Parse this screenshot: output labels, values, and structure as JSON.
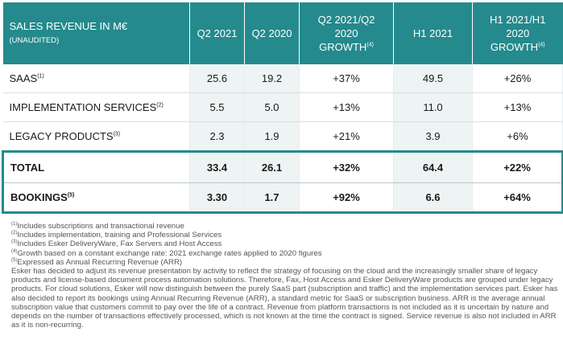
{
  "table": {
    "header": {
      "title": "SALES REVENUE IN M€",
      "subtitle": "(UNAUDITED)",
      "col_q2_2021": "Q2 2021",
      "col_q2_2020": "Q2 2020",
      "col_q2_growth_l1": "Q2 2021/Q2",
      "col_q2_growth_l2": "2020",
      "col_q2_growth_l3": "GROWTH",
      "col_q2_growth_note": "(4)",
      "col_h1_2021": "H1 2021",
      "col_h1_growth_l1": "H1 2021/H1",
      "col_h1_growth_l2": "2020",
      "col_h1_growth_l3": "GROWTH",
      "col_h1_growth_note": "(4)"
    },
    "rows": [
      {
        "label": "SAAS",
        "note": "(1)",
        "q2_2021": "25.6",
        "q2_2020": "19.2",
        "q2_growth": "+37%",
        "h1_2021": "49.5",
        "h1_growth": "+26%"
      },
      {
        "label": "IMPLEMENTATION SERVICES",
        "note": "(2)",
        "q2_2021": "5.5",
        "q2_2020": "5.0",
        "q2_growth": "+13%",
        "h1_2021": "11.0",
        "h1_growth": "+13%"
      },
      {
        "label": "LEGACY PRODUCTS",
        "note": "(3)",
        "q2_2021": "2.3",
        "q2_2020": "1.9",
        "q2_growth": "+21%",
        "h1_2021": "3.9",
        "h1_growth": "+6%"
      },
      {
        "label": "TOTAL",
        "note": "",
        "q2_2021": "33.4",
        "q2_2020": "26.1",
        "q2_growth": "+32%",
        "h1_2021": "64.4",
        "h1_growth": "+22%"
      },
      {
        "label": "BOOKINGS",
        "note": "(5)",
        "q2_2021": "3.30",
        "q2_2020": "1.7",
        "q2_growth": "+92%",
        "h1_2021": "6.6",
        "h1_growth": "+64%"
      }
    ]
  },
  "footnotes": [
    {
      "mark": "(1)",
      "text": "Includes subscriptions and transactional revenue"
    },
    {
      "mark": "(2)",
      "text": "Includes implementation, training and Professional Services"
    },
    {
      "mark": "(3)",
      "text": "Includes Esker DeliveryWare, Fax Servers and Host Access"
    },
    {
      "mark": "(4)",
      "text": "Growth based on a constant exchange rate: 2021 exchange rates applied to 2020 figures"
    },
    {
      "mark": "(5)",
      "text": "Expressed as Annual Recurring Revenue (ARR)"
    }
  ],
  "explanation": "Esker has decided to adjust its revenue presentation by activity to reflect the strategy of focusing on the cloud and the increasingly smaller share of legacy products and license-based document process automation solutions. Therefore, Fax, Host Access and Esker DeliveryWare products are grouped under legacy products. For cloud solutions, Esker will now distinguish between the purely SaaS part (subscription and traffic) and the implementation services part. Esker has also decided to report its bookings using Annual Recurring Revenue (ARR), a standard metric for SaaS or subscription business. ARR is the average annual subscription value that customers commit to pay over the life of a contract. Revenue from platform transactions is not included as it is uncertain by nature and depends on the number of transactions effectively processed, which is not known at the time the contract is signed. Service revenue is also not included in ARR as it is non-recurring.",
  "colors": {
    "header_bg": "#248a8d",
    "shade": "#eef3f3",
    "frame": "#248a8d"
  }
}
